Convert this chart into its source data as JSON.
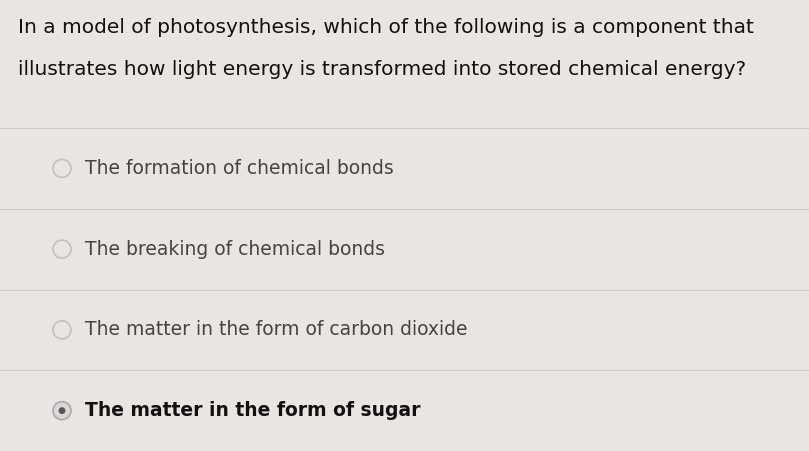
{
  "question_line1": "In a model of photosynthesis, which of the following is a component that",
  "question_line2": "illustrates how light energy is transformed into stored chemical energy?",
  "options": [
    "The formation of chemical bonds",
    "The breaking of chemical bonds",
    "The matter in the form of carbon dioxide",
    "The matter in the form of sugar"
  ],
  "selected_index": 3,
  "bg_color": "#e8e6e3",
  "question_text_color": "#111111",
  "option_text_color": "#444444",
  "divider_color": "#cccccc",
  "radio_edge_unselected": "#bbbbbb",
  "radio_edge_selected": "#999999",
  "radio_fill_selected_outer": "#e0e0e0",
  "radio_dot_selected": "#555555",
  "question_fontsize": 14.5,
  "option_fontsize": 13.5,
  "fig_width": 8.09,
  "fig_height": 4.51,
  "dpi": 100
}
